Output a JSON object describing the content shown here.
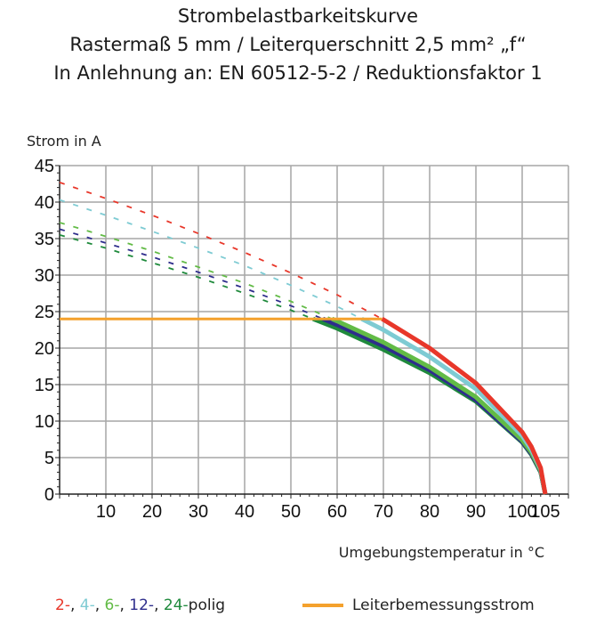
{
  "chart_data": {
    "type": "line",
    "title": [
      "Strombelastbarkeitskurve",
      "Rastermaß 5 mm / Leiterquerschnitt 2,5 mm² „f“",
      "In Anlehnung an: EN 60512-5-2 / Reduktionsfaktor 1"
    ],
    "xlabel": "Umgebungstemperatur in °C",
    "ylabel": "Strom in A",
    "xlim": [
      0,
      110
    ],
    "ylim": [
      0,
      45
    ],
    "xticks": [
      10,
      20,
      30,
      40,
      50,
      60,
      70,
      80,
      90,
      100,
      105
    ],
    "yticks": [
      0,
      5,
      10,
      15,
      20,
      25,
      30,
      35,
      40,
      45
    ],
    "grid": true,
    "x": [
      0,
      10,
      20,
      30,
      40,
      50,
      60,
      70,
      80,
      90,
      100,
      102,
      104,
      105
    ],
    "series": [
      {
        "name": "2-",
        "color": "#e8372a",
        "values": [
          42.7,
          40.5,
          38.2,
          35.7,
          33.1,
          30.3,
          27.3,
          23.9,
          20.0,
          15.2,
          8.5,
          6.5,
          3.6,
          0
        ]
      },
      {
        "name": "4-",
        "color": "#7ecbd3",
        "values": [
          40.3,
          38.2,
          36.0,
          33.7,
          31.3,
          28.6,
          25.7,
          22.5,
          18.8,
          14.4,
          8.0,
          6.1,
          3.4,
          0
        ]
      },
      {
        "name": "6-",
        "color": "#62bb46",
        "values": [
          37.2,
          35.3,
          33.3,
          31.1,
          28.9,
          26.4,
          23.7,
          20.8,
          17.4,
          13.3,
          7.4,
          5.7,
          3.2,
          0
        ]
      },
      {
        "name": "12-",
        "color": "#2e2d8c",
        "values": [
          36.3,
          34.4,
          32.5,
          30.4,
          28.2,
          25.8,
          23.2,
          20.3,
          17.0,
          12.9,
          7.2,
          5.5,
          3.1,
          0
        ]
      },
      {
        "name": "24-",
        "color": "#1f8a3c",
        "values": [
          35.5,
          33.7,
          31.7,
          29.7,
          27.5,
          25.2,
          22.7,
          19.8,
          16.6,
          12.7,
          7.1,
          5.4,
          3.0,
          0
        ]
      }
    ],
    "rated_current": {
      "name": "Leiterbemessungsstrom",
      "value": 24,
      "color": "#f4a12d"
    },
    "legend": {
      "series_suffix": "polig",
      "separator": ", ",
      "placement": "bottom"
    }
  }
}
